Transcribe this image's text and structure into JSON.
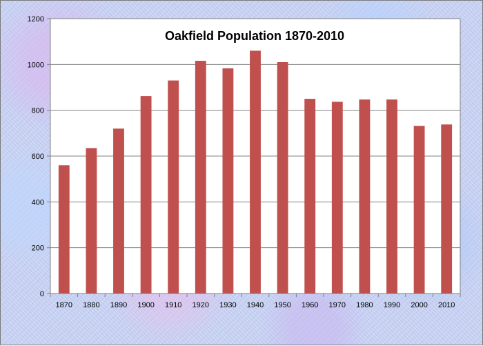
{
  "chart_data": {
    "type": "bar",
    "title": "Oakfield Population 1870-2010",
    "xlabel": "",
    "ylabel": "",
    "categories": [
      "1870",
      "1880",
      "1890",
      "1900",
      "1910",
      "1920",
      "1930",
      "1940",
      "1950",
      "1960",
      "1970",
      "1980",
      "1990",
      "2000",
      "2010"
    ],
    "values": [
      560,
      635,
      720,
      862,
      930,
      1016,
      983,
      1060,
      1010,
      850,
      837,
      847,
      847,
      732,
      738
    ],
    "ylim": [
      0,
      1200
    ],
    "yticks": [
      0,
      200,
      400,
      600,
      800,
      1000,
      1200
    ],
    "grid": true,
    "legend": "none",
    "colors": {
      "bar": "#c0504d",
      "plot_background": "#ffffff",
      "gridline": "#808080"
    }
  }
}
